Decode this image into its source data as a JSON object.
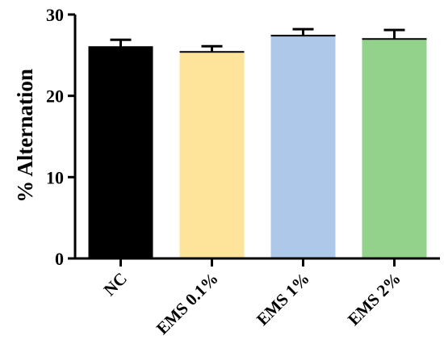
{
  "chart_data": {
    "type": "bar",
    "title": "",
    "xlabel": "",
    "ylabel": "% Alternation",
    "ylim": [
      0,
      30
    ],
    "yticks": [
      0,
      10,
      20,
      30
    ],
    "grid": false,
    "categories": [
      "NC",
      "EMS 0.1%",
      "EMS 1%",
      "EMS 2%"
    ],
    "values": [
      26.0,
      25.4,
      27.4,
      27.0
    ],
    "errors": [
      0.9,
      0.7,
      0.8,
      1.1
    ],
    "colors": [
      "#000000",
      "#fde49a",
      "#adc8e8",
      "#93d28b"
    ]
  }
}
